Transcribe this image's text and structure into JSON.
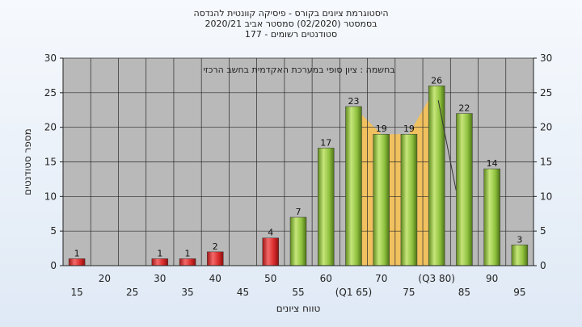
{
  "chart_data": {
    "type": "bar",
    "title": "היסטוגרמת ציונים בקורס - פיסיקה קוונטית להנדסה",
    "subtitle_lines": [
      "בסמסטר  (02/2020)  סמסטר אביב 2020/21",
      "סטודנטים רשומים - 177"
    ],
    "annotation": "בחשמה : ציון סופי במערכת האקדמית בחשב הרכזי",
    "ylabel": "מספר סטודנטים",
    "xlabel": "טווח ציונים",
    "ylim": [
      0,
      30
    ],
    "yticks": [
      0,
      5,
      10,
      15,
      20,
      25,
      30
    ],
    "grid": true,
    "categories": [
      "15",
      "20",
      "25",
      "30",
      "35",
      "40",
      "45",
      "50",
      "55",
      "60",
      "65",
      "70",
      "75",
      "80",
      "85",
      "90",
      "95"
    ],
    "tick_labels": [
      "15",
      "20",
      "25",
      "30",
      "35",
      "40",
      "45",
      "50",
      "55",
      "60",
      "(Q1 65)",
      "70",
      "75",
      "(Q3 80)",
      "85",
      "90",
      "95"
    ],
    "values": [
      1,
      0,
      0,
      1,
      1,
      2,
      0,
      4,
      7,
      17,
      23,
      19,
      19,
      26,
      22,
      14,
      3
    ],
    "data_labels": [
      "1",
      "",
      "",
      "1",
      "1",
      "2",
      "",
      "4",
      "7",
      "17",
      "23",
      "19",
      "19",
      "26",
      "22",
      "14",
      "3"
    ],
    "pass_threshold": 55,
    "iqr_band": {
      "from": "65",
      "to": "80"
    },
    "colors": {
      "fail": "#d92b2b",
      "pass": "#8fc13e",
      "iqr_fill": "#f7c255",
      "plot_bg": "#b9b9b9",
      "grid": "#2a2a2a"
    }
  }
}
